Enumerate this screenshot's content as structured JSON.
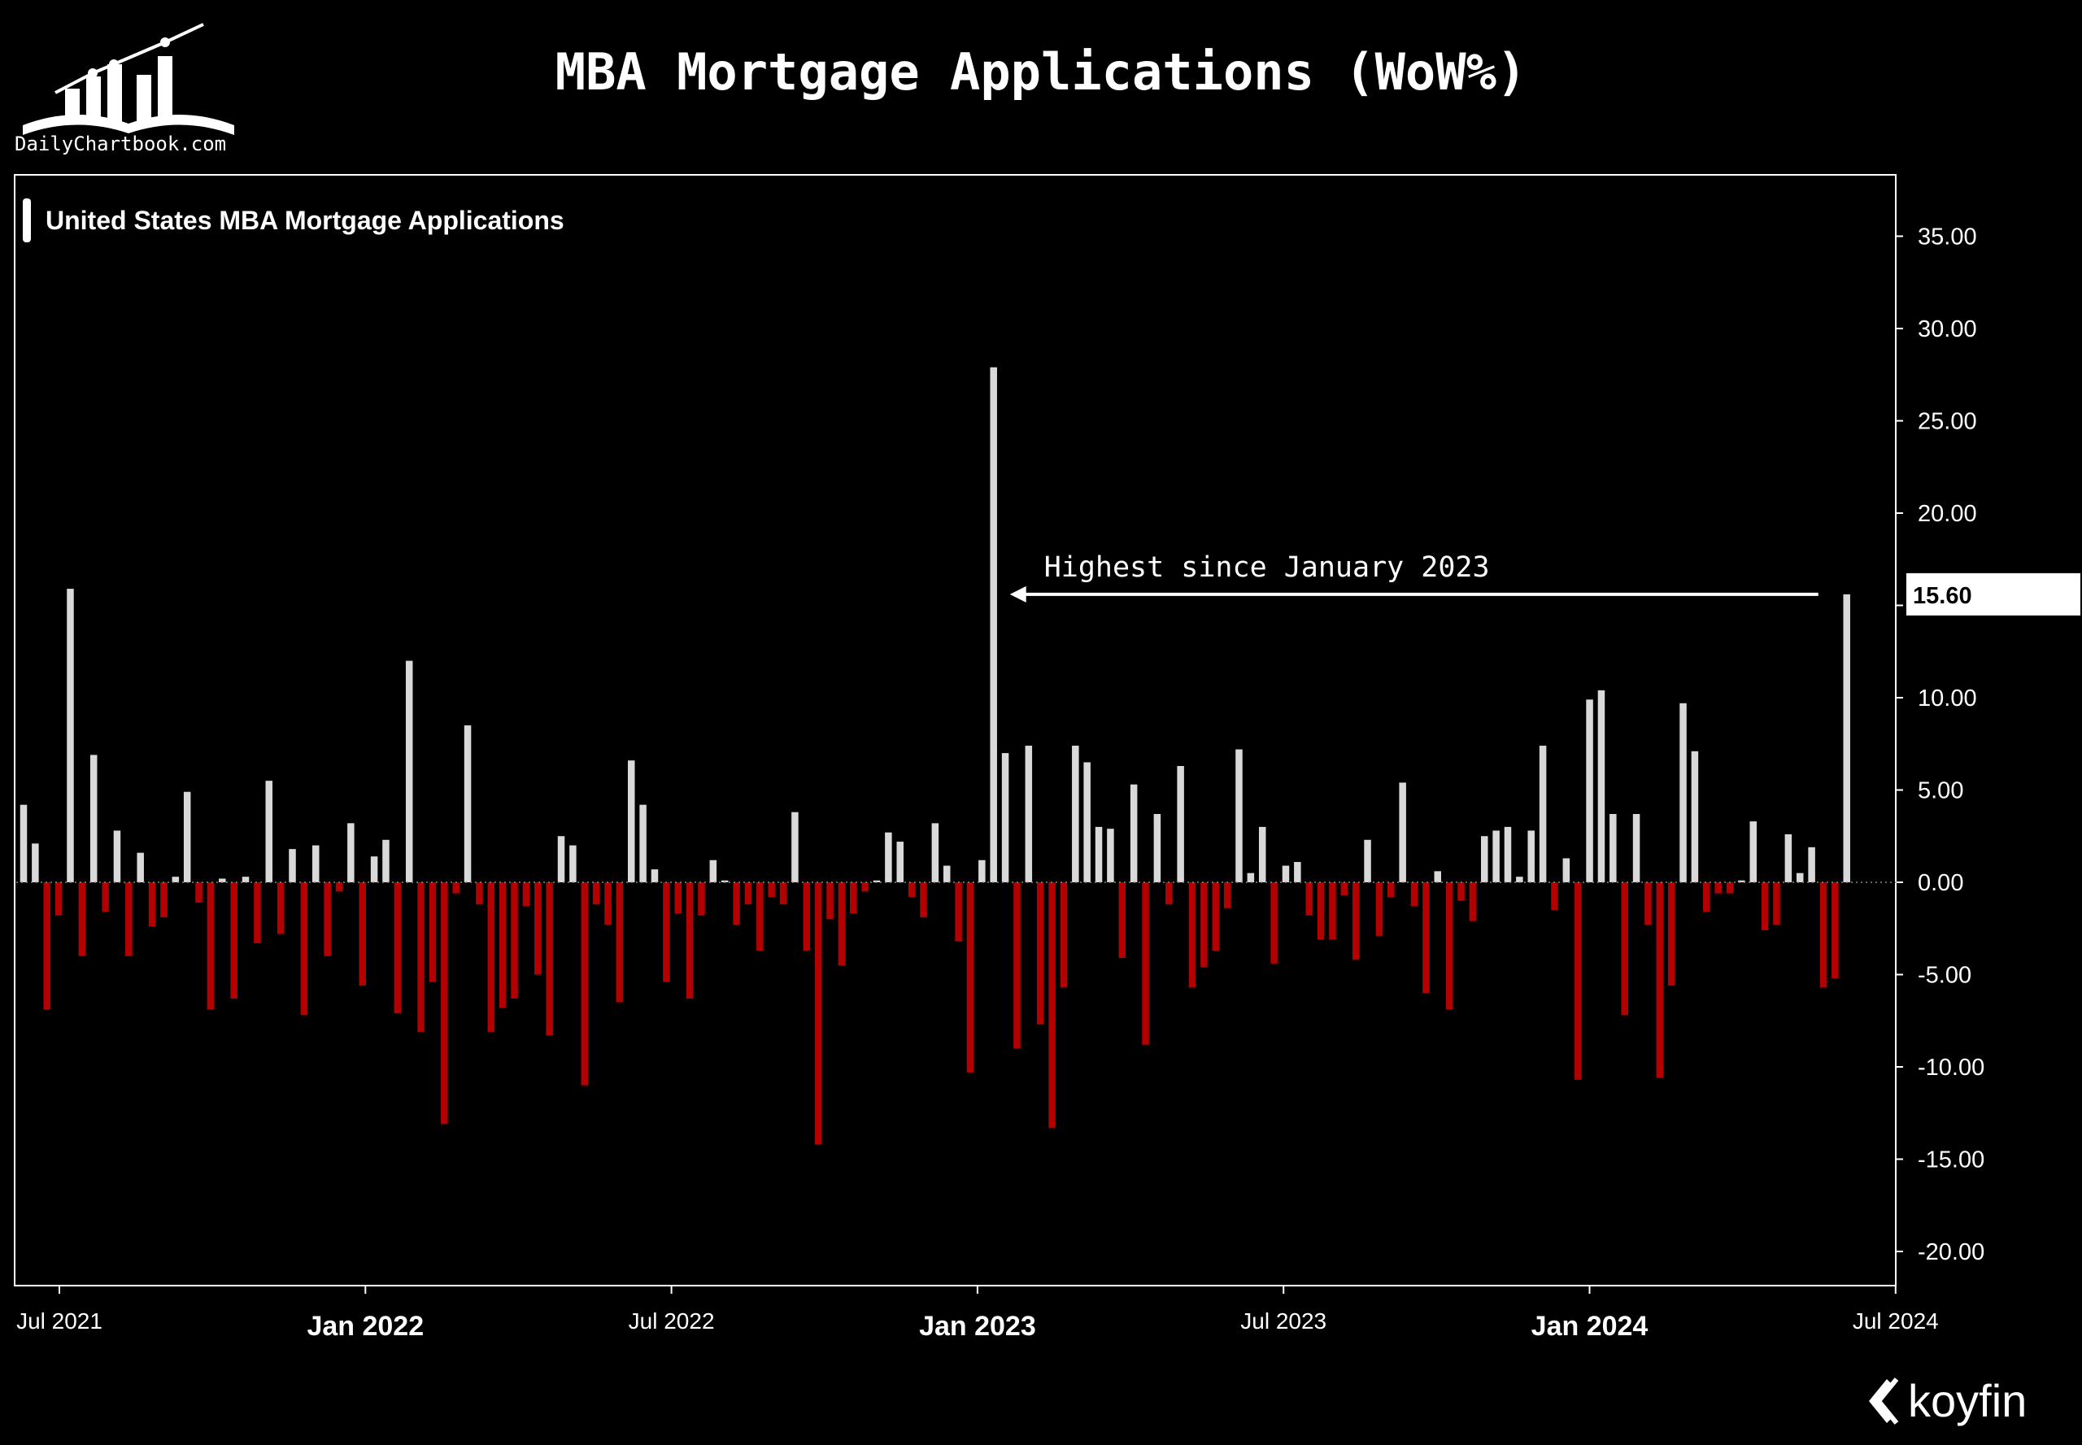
{
  "header": {
    "title": "MBA Mortgage Applications (WoW%)",
    "brand": "DailyChartbook.com",
    "watermark": "koyfin"
  },
  "legend": {
    "label": "United States MBA Mortgage Applications"
  },
  "colors": {
    "positive": "#d9d9d9",
    "negative": "#b30000",
    "background": "#000000",
    "text": "#ffffff"
  },
  "chart_data": {
    "type": "bar",
    "title": "MBA Mortgage Applications (WoW%)",
    "series": [
      {
        "name": "United States MBA Mortgage Applications",
        "x_start": "2021-06-25",
        "frequency": "weekly",
        "values": [
          4.2,
          2.1,
          -6.9,
          -1.8,
          15.9,
          -4.0,
          6.9,
          -1.6,
          2.8,
          -4.0,
          1.6,
          -2.4,
          -1.9,
          0.3,
          4.9,
          -1.1,
          -6.9,
          0.2,
          -6.3,
          0.3,
          -3.3,
          5.5,
          -2.8,
          1.8,
          -7.2,
          2.0,
          -4.0,
          -0.5,
          3.2,
          -5.6,
          1.4,
          2.3,
          -7.1,
          12.0,
          -8.1,
          -5.4,
          -13.1,
          -0.6,
          8.5,
          -1.2,
          -8.1,
          -6.8,
          -6.3,
          -1.3,
          -5.0,
          -8.3,
          2.5,
          2.0,
          -11.0,
          -1.2,
          -2.3,
          -6.5,
          6.6,
          4.2,
          0.7,
          -5.4,
          -1.7,
          -6.3,
          -1.8,
          1.2,
          0.1,
          -2.3,
          -1.2,
          -3.7,
          -0.8,
          -1.2,
          3.8,
          -3.7,
          -14.2,
          -2.0,
          -4.5,
          -1.7,
          -0.5,
          0.1,
          2.7,
          2.2,
          -0.8,
          -1.9,
          3.2,
          0.9,
          -3.2,
          -10.3,
          1.2,
          27.9,
          7.0,
          -9.0,
          7.4,
          -7.7,
          -13.3,
          -5.7,
          7.4,
          6.5,
          3.0,
          2.9,
          -4.1,
          5.3,
          -8.8,
          3.7,
          -1.2,
          6.3,
          -5.7,
          -4.6,
          -3.7,
          -1.4,
          7.2,
          0.5,
          3.0,
          -4.4,
          0.9,
          1.1,
          -1.8,
          -3.1,
          -3.1,
          -0.7,
          -4.2,
          2.3,
          -2.9,
          -0.8,
          5.4,
          -1.3,
          -6.0,
          0.6,
          -6.9,
          -1.0,
          -2.1,
          2.5,
          2.8,
          3.0,
          0.3,
          2.8,
          7.4,
          -1.5,
          1.3,
          -10.7,
          9.9,
          10.4,
          3.7,
          -7.2,
          3.7,
          -2.3,
          -10.6,
          -5.6,
          9.7,
          7.1,
          -1.6,
          -0.6,
          -0.6,
          0.1,
          3.3,
          -2.6,
          -2.3,
          2.6,
          0.5,
          1.9,
          -5.7,
          -5.2,
          15.6
        ]
      }
    ],
    "y_ticks": [
      "35.00",
      "30.00",
      "25.00",
      "20.00",
      "15.00",
      "10.00",
      "5.00",
      "0.00",
      "-5.00",
      "-10.00",
      "-15.00",
      "-20.00"
    ],
    "ylim": [
      -22,
      38
    ],
    "x_ticks": [
      {
        "label": "Jul 2021",
        "bold": false
      },
      {
        "label": "Jan 2022",
        "bold": true
      },
      {
        "label": "Jul 2022",
        "bold": false
      },
      {
        "label": "Jan 2023",
        "bold": true
      },
      {
        "label": "Jul 2023",
        "bold": false
      },
      {
        "label": "Jan 2024",
        "bold": true
      },
      {
        "label": "Jul 2024",
        "bold": false
      }
    ],
    "last_value_label": "15.60",
    "annotation": "Highest since January 2023",
    "grid": false,
    "legend_position": "top-left"
  }
}
